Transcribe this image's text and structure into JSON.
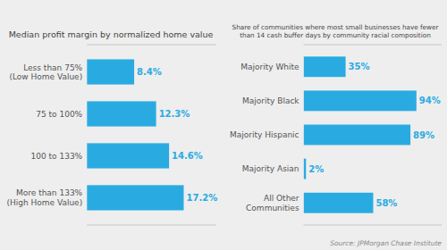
{
  "chart_data": [
    {
      "type": "bar",
      "orientation": "horizontal",
      "title": "Median profit margin by normalized home value",
      "categories": [
        "Less than 75%\n(Low Home Value)",
        "75 to 100%",
        "100 to 133%",
        "More than 133%\n(High Home Value)"
      ],
      "values": [
        8.4,
        12.3,
        14.6,
        17.2
      ],
      "value_labels": [
        "8.4%",
        "12.3%",
        "14.6%",
        "17.2%"
      ],
      "color": "#29ABE2",
      "xlim": [
        0,
        23
      ],
      "data_labels": true,
      "tick_labels": "y"
    },
    {
      "type": "bar",
      "orientation": "horizontal",
      "title": "Share of communities where most small businesses have fewer\nthan 14 cash buffer days by community racial composition",
      "categories": [
        "Majority White",
        "Majority Black",
        "Majority Hispanic",
        "Majority Asian",
        "All Other\nCommunities"
      ],
      "values": [
        35,
        94,
        89,
        2,
        58
      ],
      "value_labels": [
        "35%",
        "94%",
        "89%",
        "2%",
        "58%"
      ],
      "color": "#29ABE2",
      "xlim": [
        0,
        115
      ],
      "data_labels": true,
      "tick_labels": "y",
      "annotation": "Source: JPMorgan Chase Institute"
    }
  ]
}
